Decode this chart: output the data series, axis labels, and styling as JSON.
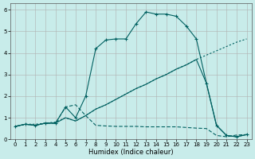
{
  "xlabel": "Humidex (Indice chaleur)",
  "bg_color": "#c8ecea",
  "grid_color": "#b0b0b0",
  "line_color": "#006060",
  "xlim": [
    -0.5,
    23.5
  ],
  "ylim": [
    0,
    6.3
  ],
  "xticks": [
    0,
    1,
    2,
    3,
    4,
    5,
    6,
    7,
    8,
    9,
    10,
    11,
    12,
    13,
    14,
    15,
    16,
    17,
    18,
    19,
    20,
    21,
    22,
    23
  ],
  "yticks": [
    0,
    1,
    2,
    3,
    4,
    5,
    6
  ],
  "line_dotted_x": [
    0,
    1,
    2,
    3,
    4,
    5,
    6,
    7,
    8,
    9,
    10,
    11,
    12,
    13,
    14,
    15,
    16,
    17,
    18,
    19,
    20,
    21,
    22,
    23
  ],
  "line_dotted_y": [
    0.6,
    0.7,
    0.7,
    0.75,
    0.8,
    1.0,
    0.85,
    1.1,
    1.4,
    1.6,
    1.85,
    2.1,
    2.35,
    2.55,
    2.8,
    3.0,
    3.25,
    3.45,
    3.7,
    3.9,
    4.1,
    4.3,
    4.5,
    4.65
  ],
  "line_dash_x": [
    0,
    1,
    2,
    3,
    4,
    5,
    6,
    7,
    8,
    9,
    10,
    11,
    12,
    13,
    14,
    15,
    16,
    17,
    18,
    19,
    20,
    21,
    22,
    23
  ],
  "line_dash_y": [
    0.6,
    0.7,
    0.65,
    0.75,
    0.75,
    1.5,
    1.6,
    1.1,
    0.65,
    0.62,
    0.6,
    0.6,
    0.6,
    0.58,
    0.58,
    0.58,
    0.58,
    0.55,
    0.52,
    0.5,
    0.18,
    0.12,
    0.2,
    0.22
  ],
  "line_peak_x": [
    0,
    1,
    2,
    3,
    4,
    5,
    6,
    7,
    8,
    9,
    10,
    11,
    12,
    13,
    14,
    15,
    16,
    17,
    18,
    19,
    20,
    21,
    22,
    23
  ],
  "line_peak_y": [
    0.6,
    0.7,
    0.65,
    0.75,
    0.75,
    1.5,
    1.0,
    2.0,
    4.2,
    4.6,
    4.65,
    4.65,
    5.35,
    5.9,
    5.8,
    5.8,
    5.7,
    5.25,
    4.65,
    2.6,
    0.65,
    0.18,
    0.12,
    0.22
  ],
  "line_solid_x": [
    0,
    1,
    2,
    3,
    4,
    5,
    6,
    7,
    8,
    9,
    10,
    11,
    12,
    13,
    14,
    15,
    16,
    17,
    18,
    19,
    20,
    21,
    22,
    23
  ],
  "line_solid_y": [
    0.6,
    0.7,
    0.65,
    0.75,
    0.75,
    1.0,
    0.85,
    1.1,
    1.4,
    1.6,
    1.85,
    2.1,
    2.35,
    2.55,
    2.8,
    3.0,
    3.25,
    3.45,
    3.7,
    2.6,
    0.65,
    0.18,
    0.12,
    0.22
  ]
}
